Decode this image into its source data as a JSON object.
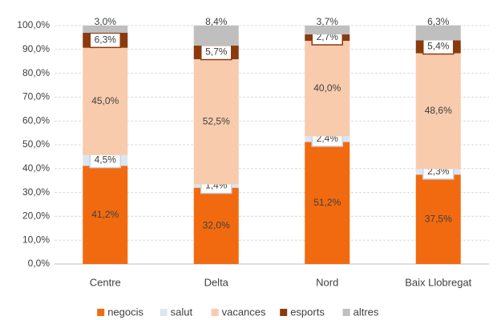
{
  "chart_data": {
    "type": "stacked_bar",
    "categories": [
      "Centre",
      "Delta",
      "Nord",
      "Baix Llobregat"
    ],
    "series": [
      {
        "name": "negocis",
        "color": "#f26a10",
        "values": [
          41.2,
          32.0,
          51.2,
          37.5
        ],
        "value_labels": [
          "41,2%",
          "32,0%",
          "51,2%",
          "37,5%"
        ]
      },
      {
        "name": "salut",
        "color": "#dce6f2",
        "values": [
          4.5,
          1.4,
          2.4,
          2.3
        ],
        "value_labels": [
          "4,5%",
          "1,4%",
          "2,4%",
          "2,3%"
        ],
        "label_box": true
      },
      {
        "name": "vacances",
        "color": "#f8cbad",
        "values": [
          45.0,
          52.5,
          40.0,
          48.6
        ],
        "value_labels": [
          "45,0%",
          "52,5%",
          "40,0%",
          "48,6%"
        ]
      },
      {
        "name": "esports",
        "color": "#8b3a0e",
        "values": [
          6.3,
          5.7,
          2.7,
          5.4
        ],
        "value_labels": [
          "6,3%",
          "5,7%",
          "2,7%",
          "5,4%"
        ],
        "label_box": true
      },
      {
        "name": "altres",
        "color": "#bfbfbf",
        "values": [
          3.0,
          8.4,
          3.7,
          6.3
        ],
        "value_labels": [
          "3,0%",
          "8,4%",
          "3,7%",
          "6,3%"
        ]
      }
    ],
    "ylim": [
      0,
      100
    ],
    "yticks": [
      {
        "value": 0,
        "label": "0,0%"
      },
      {
        "value": 10,
        "label": "10,0%"
      },
      {
        "value": 20,
        "label": "20,0%"
      },
      {
        "value": 30,
        "label": "30,0%"
      },
      {
        "value": 40,
        "label": "40,0%"
      },
      {
        "value": 50,
        "label": "50,0%"
      },
      {
        "value": 60,
        "label": "60,0%"
      },
      {
        "value": 70,
        "label": "70,0%"
      },
      {
        "value": 80,
        "label": "80,0%"
      },
      {
        "value": 90,
        "label": "90,0%"
      },
      {
        "value": 100,
        "label": "100,0%"
      }
    ],
    "grid": true,
    "legend": "bottom"
  }
}
